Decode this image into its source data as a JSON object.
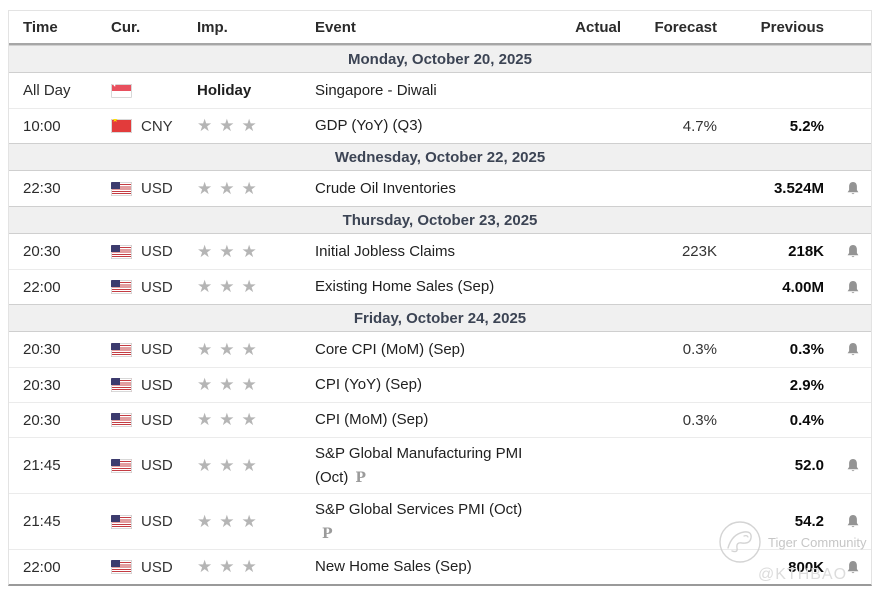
{
  "header": {
    "time": "Time",
    "currency": "Cur.",
    "importance": "Imp.",
    "event": "Event",
    "actual": "Actual",
    "forecast": "Forecast",
    "previous": "Previous"
  },
  "icons": {
    "star": "★",
    "preliminary": "P",
    "bell": "alert-bell",
    "flags": [
      "singapore-flag",
      "china-flag",
      "usa-flag"
    ]
  },
  "colors": {
    "date_row_bg": "#f0f0f0",
    "date_text": "#3c4454",
    "star": "#b5b5b5",
    "bell": "#949494",
    "previous_text": "#0a0a0a"
  },
  "rows": [
    {
      "type": "date",
      "label": "Monday, October 20, 2025"
    },
    {
      "type": "event",
      "time": "All Day",
      "flag": "sg",
      "currency": "",
      "importance": "holiday",
      "holiday_label": "Holiday",
      "event": "Singapore - Diwali",
      "actual": "",
      "forecast": "",
      "previous": "",
      "bell": false
    },
    {
      "type": "event",
      "time": "10:00",
      "flag": "cn",
      "currency": "CNY",
      "importance": "stars",
      "event": "GDP (YoY) (Q3)",
      "actual": "",
      "forecast": "4.7%",
      "previous": "5.2%",
      "bell": false
    },
    {
      "type": "date",
      "label": "Wednesday, October 22, 2025"
    },
    {
      "type": "event",
      "time": "22:30",
      "flag": "us",
      "currency": "USD",
      "importance": "stars",
      "event": "Crude Oil Inventories",
      "actual": "",
      "forecast": "",
      "previous": "3.524M",
      "bell": true
    },
    {
      "type": "date",
      "label": "Thursday, October 23, 2025"
    },
    {
      "type": "event",
      "time": "20:30",
      "flag": "us",
      "currency": "USD",
      "importance": "stars",
      "event": "Initial Jobless Claims",
      "actual": "",
      "forecast": "223K",
      "previous": "218K",
      "bell": true
    },
    {
      "type": "event",
      "time": "22:00",
      "flag": "us",
      "currency": "USD",
      "importance": "stars",
      "event": "Existing Home Sales (Sep)",
      "actual": "",
      "forecast": "",
      "previous": "4.00M",
      "bell": true
    },
    {
      "type": "date",
      "label": "Friday, October 24, 2025"
    },
    {
      "type": "event",
      "time": "20:30",
      "flag": "us",
      "currency": "USD",
      "importance": "stars",
      "event": "Core CPI (MoM) (Sep)",
      "actual": "",
      "forecast": "0.3%",
      "previous": "0.3%",
      "bell": true
    },
    {
      "type": "event",
      "time": "20:30",
      "flag": "us",
      "currency": "USD",
      "importance": "stars",
      "event": "CPI (YoY) (Sep)",
      "actual": "",
      "forecast": "",
      "previous": "2.9%",
      "bell": false
    },
    {
      "type": "event",
      "time": "20:30",
      "flag": "us",
      "currency": "USD",
      "importance": "stars",
      "event": "CPI (MoM) (Sep)",
      "actual": "",
      "forecast": "0.3%",
      "previous": "0.4%",
      "bell": false
    },
    {
      "type": "event",
      "time": "21:45",
      "flag": "us",
      "currency": "USD",
      "importance": "stars",
      "event": "S&P Global Manufacturing PMI",
      "event_line2": "(Oct)",
      "preliminary": true,
      "tall": true,
      "actual": "",
      "forecast": "",
      "previous": "52.0",
      "bell": true
    },
    {
      "type": "event",
      "time": "21:45",
      "flag": "us",
      "currency": "USD",
      "importance": "stars",
      "event": "S&P Global Services PMI (Oct)",
      "event_line2": "",
      "preliminary": true,
      "tall": true,
      "actual": "",
      "forecast": "",
      "previous": "54.2",
      "bell": true
    },
    {
      "type": "event",
      "time": "22:00",
      "flag": "us",
      "currency": "USD",
      "importance": "stars",
      "event": "New Home Sales (Sep)",
      "actual": "",
      "forecast": "",
      "previous": "800K",
      "bell": true
    }
  ],
  "watermark": {
    "brand": "Tiger Community",
    "handle": "@KTHBAO"
  }
}
